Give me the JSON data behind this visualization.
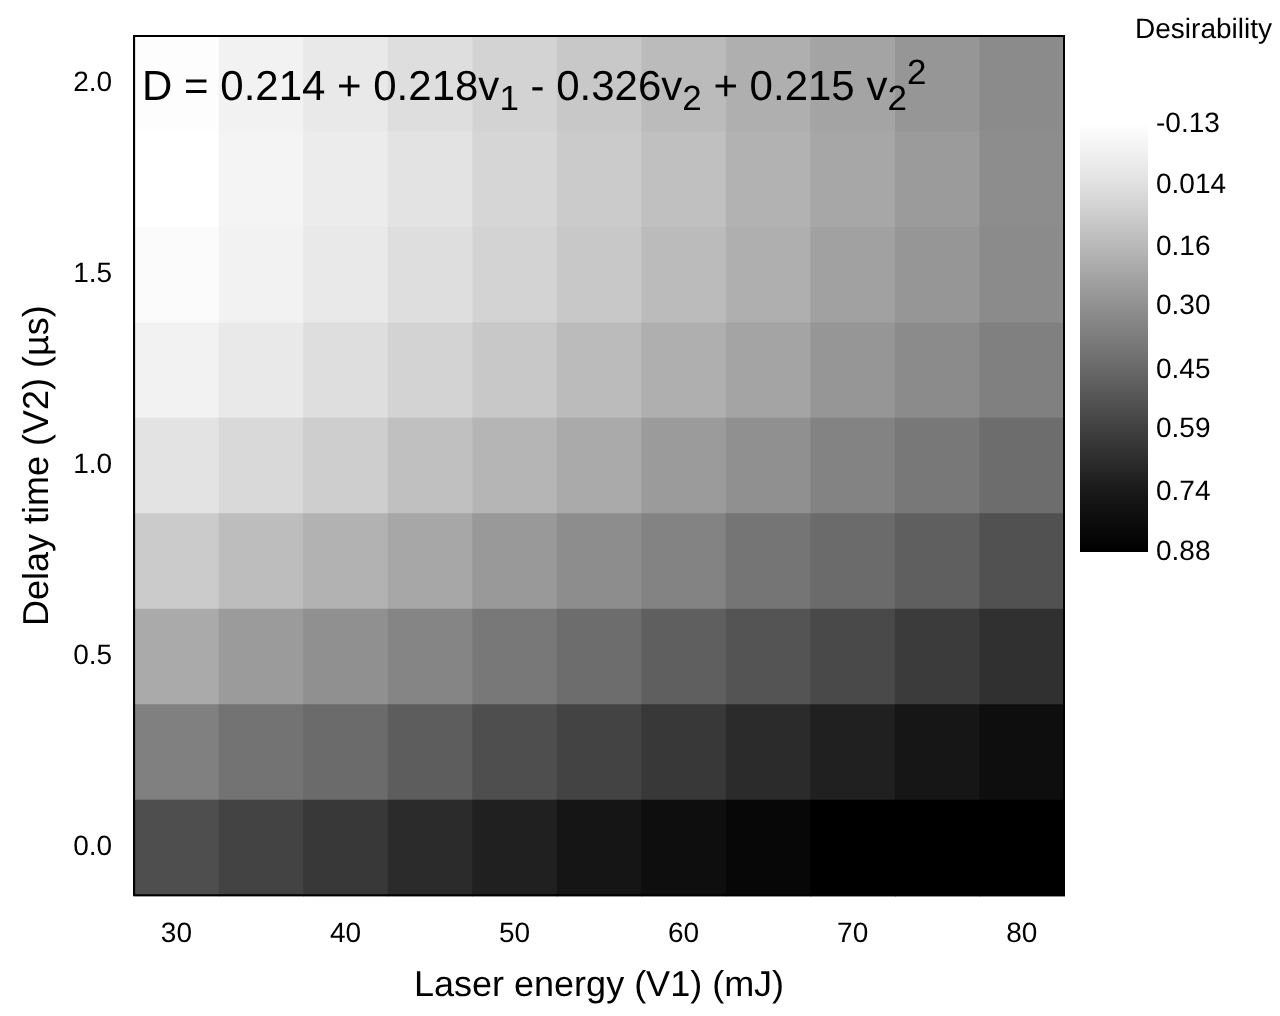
{
  "chart_data": {
    "type": "heatmap",
    "xlabel": "Laser energy (V1) (mJ)",
    "ylabel": "Delay time (V2) (µs)",
    "clabel": "Desirability",
    "annotations": [
      "D = 0.214 + 0.218v$_{1}$ - 0.326v$_{2}$ + 0.215 v$_{2}$$^{2}$"
    ],
    "categories": [
      "30",
      null,
      "40",
      null,
      "50",
      null,
      "60",
      null,
      "70",
      null,
      "80"
    ],
    "y_categories": [
      "2.0",
      null,
      "1.5",
      null,
      "1.0",
      null,
      "0.5",
      null,
      "0.0"
    ],
    "cells": [
      [
        -0.12,
        -0.07,
        -0.03,
        0.02,
        0.06,
        0.1,
        0.15,
        0.19,
        0.23,
        0.28,
        0.32
      ],
      [
        -0.13,
        -0.08,
        -0.04,
        0.0,
        0.05,
        0.09,
        0.13,
        0.18,
        0.22,
        0.26,
        0.31
      ],
      [
        -0.11,
        -0.07,
        -0.03,
        0.02,
        0.06,
        0.1,
        0.15,
        0.19,
        0.24,
        0.28,
        0.32
      ],
      [
        -0.07,
        -0.03,
        0.02,
        0.06,
        0.1,
        0.15,
        0.19,
        0.23,
        0.28,
        0.32,
        0.36
      ],
      [
        0.0,
        0.04,
        0.08,
        0.13,
        0.17,
        0.21,
        0.26,
        0.3,
        0.35,
        0.39,
        0.43
      ],
      [
        0.09,
        0.14,
        0.18,
        0.22,
        0.27,
        0.31,
        0.35,
        0.4,
        0.44,
        0.48,
        0.53
      ],
      [
        0.21,
        0.26,
        0.3,
        0.34,
        0.39,
        0.43,
        0.48,
        0.52,
        0.56,
        0.61,
        0.65
      ],
      [
        0.36,
        0.41,
        0.44,
        0.49,
        0.54,
        0.58,
        0.62,
        0.67,
        0.71,
        0.75,
        0.8
      ],
      [
        0.54,
        0.58,
        0.62,
        0.67,
        0.71,
        0.76,
        0.8,
        0.84,
        0.88,
        0.88,
        0.88
      ]
    ],
    "clim": [
      -0.13,
      0.88
    ],
    "cticks": [
      -0.13,
      0.014,
      0.16,
      {
        "value": 0.3,
        "label": "0.30"
      },
      0.45,
      0.59,
      0.74,
      0.88
    ],
    "colors": [
      "#ffffff",
      "#e0e0e0",
      "#b8b8b8",
      "#909090",
      "#686868",
      "#404040",
      "#181818",
      "#000000"
    ]
  }
}
